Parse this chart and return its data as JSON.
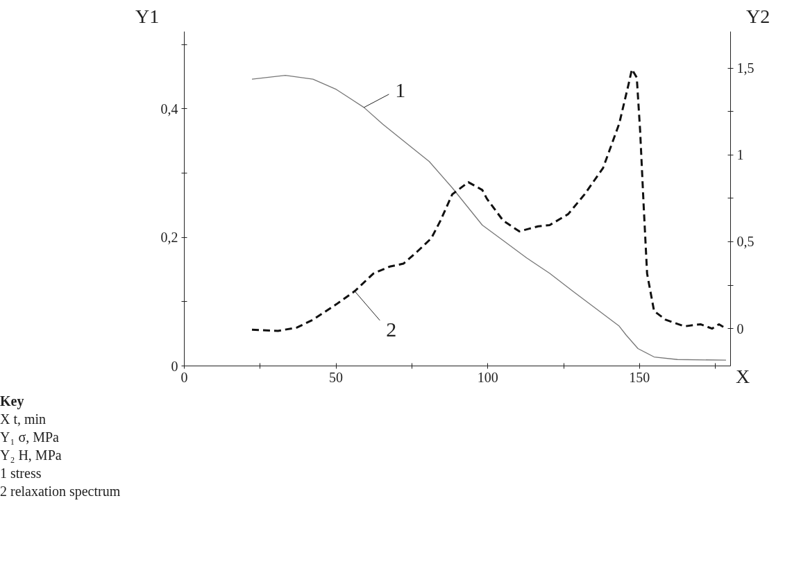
{
  "chart_data": {
    "type": "line",
    "xlabel": "X",
    "ylabel": "Y1",
    "y2label": "Y2",
    "xlim": [
      0,
      180
    ],
    "ylim": [
      0,
      0.52
    ],
    "y2lim": [
      -0.215,
      1.71
    ],
    "xticks": [
      0,
      {
        "value": 25,
        "label": null
      },
      50,
      {
        "value": 75,
        "label": null
      },
      100,
      {
        "value": 125,
        "label": null
      },
      150,
      {
        "value": 175,
        "label": null
      }
    ],
    "yticks": [
      0,
      {
        "value": 0.1,
        "label": null
      },
      {
        "value": 0.2,
        "label": "0,2"
      },
      {
        "value": 0.3,
        "label": null
      },
      {
        "value": 0.4,
        "label": "0,4"
      },
      {
        "value": 0.5,
        "label": null
      }
    ],
    "y2ticks": [
      0,
      {
        "value": 0.25,
        "label": null
      },
      {
        "value": 0.5,
        "label": "0,5"
      },
      {
        "value": 0.75,
        "label": null
      },
      1,
      {
        "value": 1.25,
        "label": null
      },
      {
        "value": 1.5,
        "label": "1,5"
      }
    ],
    "grid": false,
    "marker": "none",
    "series": [
      {
        "color": "#777777",
        "line_style": "solid",
        "x": [
          22.3,
          33.3,
          42.4,
          50.1,
          59.2,
          65.4,
          73.0,
          80.7,
          88.3,
          98.2,
          105.1,
          112.8,
          120.4,
          128.1,
          135.7,
          143.3,
          145.6,
          149.5,
          154.8,
          162.5,
          178.5
        ],
        "values": [
          0.446,
          0.452,
          0.446,
          0.43,
          0.402,
          0.376,
          0.347,
          0.318,
          0.277,
          0.219,
          0.195,
          0.168,
          0.144,
          0.116,
          0.089,
          0.062,
          0.048,
          0.027,
          0.014,
          0.01,
          0.009
        ]
      },
      {
        "color": "#111111",
        "line_style": "dashed",
        "axis": "y2",
        "x": [
          22.3,
          30.9,
          37.1,
          42.4,
          50.1,
          56.2,
          62.3,
          67.7,
          72.2,
          76.8,
          81.4,
          84.4,
          88.3,
          93.6,
          98.2,
          99.7,
          105.1,
          110.4,
          116.6,
          120.4,
          126.5,
          131.9,
          138.0,
          143.3,
          146.4,
          147.5,
          149.1,
          150.2,
          151.4,
          152.5,
          154.8,
          158.6,
          164.8,
          170.1,
          173.9,
          176.2,
          178.5
        ],
        "values": [
          -0.006,
          -0.013,
          0.006,
          0.051,
          0.14,
          0.216,
          0.317,
          0.357,
          0.374,
          0.444,
          0.52,
          0.621,
          0.773,
          0.843,
          0.798,
          0.748,
          0.621,
          0.56,
          0.589,
          0.596,
          0.659,
          0.773,
          0.925,
          1.179,
          1.407,
          1.493,
          1.445,
          1.141,
          0.697,
          0.317,
          0.101,
          0.051,
          0.013,
          0.025,
          0.0,
          0.025,
          0.0
        ]
      }
    ],
    "annotations": [
      {
        "text": "1",
        "x": 59.2,
        "y": 0.402
      },
      {
        "text": "2",
        "x": 56.2,
        "y": 0.116
      },
      "Key",
      "X  t, min",
      "Y₁  σ, MPa",
      "Y₂  H, MPa",
      "1  stress",
      "2  relaxation spectrum"
    ]
  }
}
